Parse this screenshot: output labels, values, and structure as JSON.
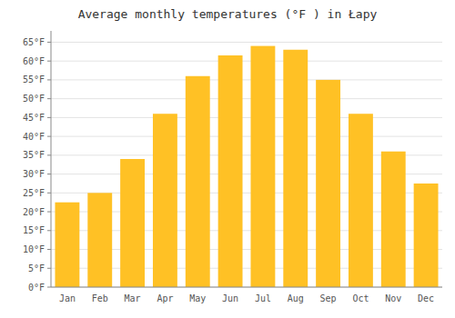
{
  "chart_data": {
    "type": "bar",
    "title": "Average monthly temperatures (°F ) in Łapy",
    "categories": [
      "Jan",
      "Feb",
      "Mar",
      "Apr",
      "May",
      "Jun",
      "Jul",
      "Aug",
      "Sep",
      "Oct",
      "Nov",
      "Dec"
    ],
    "values": [
      22.5,
      25.0,
      34.0,
      46.0,
      56.0,
      61.5,
      64.0,
      63.0,
      55.0,
      46.0,
      36.0,
      27.5
    ],
    "color": "#FFC125",
    "ylim": [
      0,
      68
    ],
    "yticks": [
      {
        "value": 0,
        "label": "0°F"
      },
      {
        "value": 5,
        "label": "5°F"
      },
      {
        "value": 10,
        "label": "10°F"
      },
      {
        "value": 15,
        "label": "15°F"
      },
      {
        "value": 20,
        "label": "20°F"
      },
      {
        "value": 25,
        "label": "25°F"
      },
      {
        "value": 30,
        "label": "30°F"
      },
      {
        "value": 35,
        "label": "35°F"
      },
      {
        "value": 40,
        "label": "40°F"
      },
      {
        "value": 45,
        "label": "45°F"
      },
      {
        "value": 50,
        "label": "50°F"
      },
      {
        "value": 55,
        "label": "55°F"
      },
      {
        "value": 60,
        "label": "60°F"
      },
      {
        "value": 65,
        "label": "65°F"
      }
    ],
    "grid": true
  }
}
